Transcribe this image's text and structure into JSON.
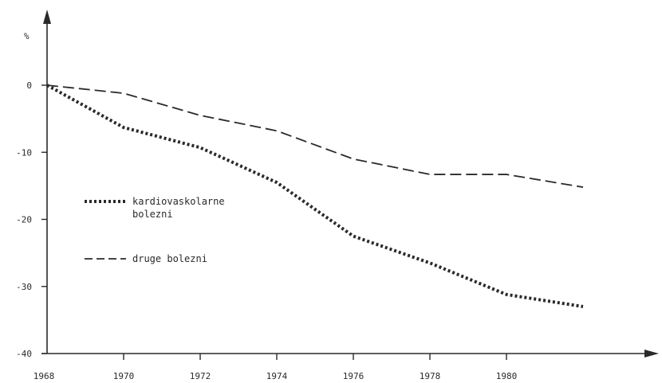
{
  "chart_data": {
    "type": "line",
    "title": "",
    "xlabel": "",
    "ylabel": "%",
    "x": [
      1968,
      1970,
      1972,
      1974,
      1976,
      1978,
      1980,
      1982
    ],
    "xticks": [
      "1968",
      "1970",
      "1972",
      "1974",
      "1976",
      "1978",
      "1980"
    ],
    "yticks": [
      "0",
      "-10",
      "-20",
      "-30",
      "-40"
    ],
    "ylim": [
      -40,
      0
    ],
    "xlim": [
      1968,
      1984
    ],
    "grid": false,
    "legend_position": "left-middle",
    "series": [
      {
        "name_lines": [
          "kardiovaskolarne",
          "bolezni"
        ],
        "style": "dotted",
        "values": [
          0,
          -6.3,
          -9.3,
          -14.5,
          -22.5,
          -26.5,
          -31.2,
          -33
        ]
      },
      {
        "name_lines": [
          "druge bolezni"
        ],
        "style": "dashed",
        "values": [
          0,
          -1.2,
          -4.5,
          -6.8,
          -11,
          -13.3,
          -13.3,
          -15.2
        ]
      }
    ]
  }
}
